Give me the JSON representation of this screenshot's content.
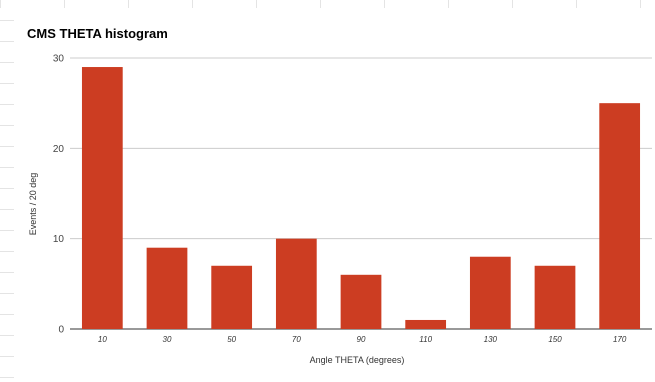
{
  "chart_data": {
    "type": "bar",
    "title": "CMS THETA histogram",
    "xlabel": "Angle THETA (degrees)",
    "ylabel": "Events / 20 deg",
    "categories": [
      "10",
      "30",
      "50",
      "70",
      "90",
      "110",
      "130",
      "150",
      "170"
    ],
    "values": [
      29,
      9,
      7,
      10,
      6,
      1,
      8,
      7,
      25
    ],
    "yticks": [
      "0",
      "10",
      "20",
      "30"
    ],
    "ylim": [
      0,
      30
    ],
    "grid": true,
    "legend": "none",
    "bar_color": "#cc3d22"
  }
}
